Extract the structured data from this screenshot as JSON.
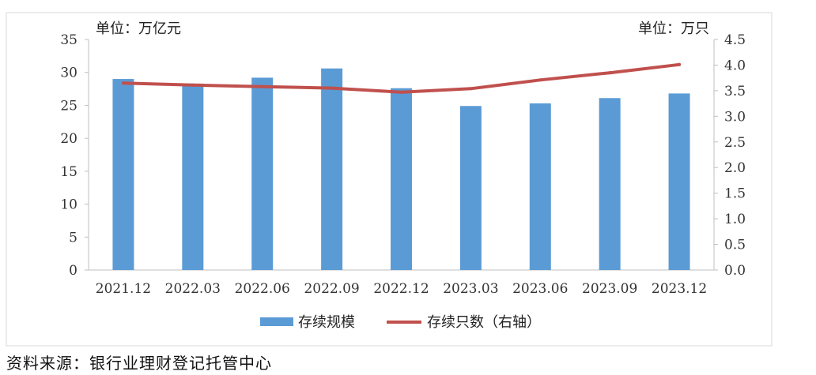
{
  "chart_data": {
    "type": "bar+line",
    "categories": [
      "2021.12",
      "2022.03",
      "2022.06",
      "2022.09",
      "2022.12",
      "2023.03",
      "2023.06",
      "2023.09",
      "2023.12"
    ],
    "series": [
      {
        "name": "存续规模",
        "kind": "bar",
        "axis": "left",
        "color": "#5b9bd5",
        "values": [
          29.0,
          28.3,
          29.2,
          30.6,
          27.6,
          24.9,
          25.3,
          26.1,
          26.8
        ]
      },
      {
        "name": "存续只数（右轴）",
        "kind": "line",
        "axis": "right",
        "color": "#c0504d",
        "values": [
          3.65,
          3.61,
          3.58,
          3.55,
          3.47,
          3.54,
          3.71,
          3.85,
          4.01
        ]
      }
    ],
    "left_axis": {
      "unit_label": "单位：万亿元",
      "ylim": [
        0,
        35
      ],
      "ticks": [
        "0",
        "5",
        "10",
        "15",
        "20",
        "25",
        "30",
        "35"
      ]
    },
    "right_axis": {
      "unit_label": "单位：万只",
      "ylim": [
        0,
        4.5
      ],
      "ticks": [
        "0.0",
        "0.5",
        "1.0",
        "1.5",
        "2.0",
        "2.5",
        "3.0",
        "3.5",
        "4.0",
        "4.5"
      ]
    },
    "legend_position": "bottom-center"
  },
  "source_note": "资料来源：银行业理财登记托管中心"
}
